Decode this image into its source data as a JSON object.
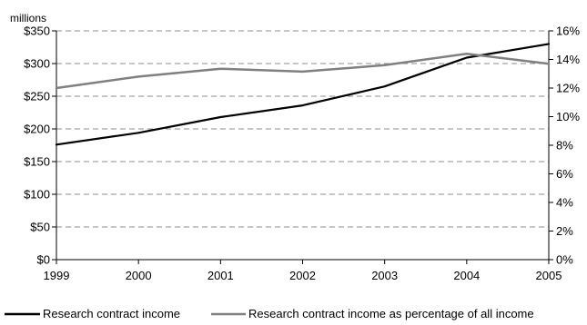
{
  "chart_data": {
    "type": "line",
    "title": "",
    "left_axis_unit_label": "millions",
    "x": [
      "1999",
      "2000",
      "2001",
      "2002",
      "2003",
      "2004",
      "2005"
    ],
    "x_tick_labels": [
      "1999",
      "2000",
      "2001",
      "2002",
      "2003",
      "2004",
      "2005"
    ],
    "left_axis": {
      "min": 0,
      "max": 350,
      "step": 50,
      "tick_labels": [
        "$0",
        "$50",
        "$100",
        "$150",
        "$200",
        "$250",
        "$300",
        "$350"
      ]
    },
    "right_axis": {
      "min": 0,
      "max": 16,
      "step": 2,
      "tick_labels": [
        "0%",
        "2%",
        "4%",
        "6%",
        "8%",
        "10%",
        "12%",
        "14%",
        "16%"
      ]
    },
    "grid": "horizontal dashed",
    "legend_position": "bottom",
    "series": [
      {
        "name": "Research contract income",
        "axis": "left",
        "color": "#000000",
        "values": [
          176,
          194,
          218,
          236,
          265,
          309,
          330
        ]
      },
      {
        "name": "Research contract income as percentage of all income",
        "axis": "right",
        "color": "#808080",
        "values": [
          12.0,
          12.8,
          13.35,
          13.15,
          13.6,
          14.4,
          13.7
        ]
      }
    ]
  }
}
